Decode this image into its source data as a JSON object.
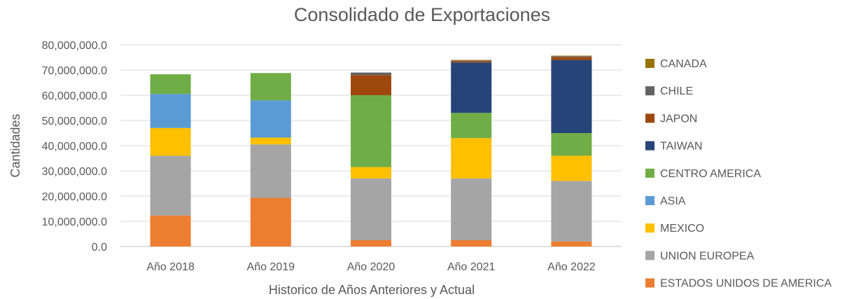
{
  "chart_data": {
    "type": "bar",
    "stacked": true,
    "title": "Consolidado de Exportaciones",
    "xlabel": "Historico de Años Anteriores y Actual",
    "ylabel": "Cantidades",
    "ylim": [
      0,
      80000000
    ],
    "yticks": [
      0,
      10000000,
      20000000,
      30000000,
      40000000,
      50000000,
      60000000,
      70000000,
      80000000
    ],
    "ytick_labels": [
      "0.0",
      "10,000,000.0",
      "20,000,000.0",
      "30,000,000.0",
      "40,000,000.0",
      "50,000,000.0",
      "60,000,000.0",
      "70,000,000.0",
      "80,000,000.0"
    ],
    "grid": true,
    "legend_position": "right",
    "categories": [
      "Año 2018",
      "Año 2019",
      "Año 2020",
      "Año 2021",
      "Año 2022"
    ],
    "series": [
      {
        "name": "ESTADOS UNIDOS DE AMERICA",
        "color": "#ed7d31",
        "values": [
          12300000,
          19300000,
          2500000,
          2500000,
          2000000
        ]
      },
      {
        "name": "UNION EUROPEA",
        "color": "#a5a5a5",
        "values": [
          23700000,
          21200000,
          24500000,
          24500000,
          24000000
        ]
      },
      {
        "name": "MEXICO",
        "color": "#ffc000",
        "values": [
          11000000,
          2700000,
          4500000,
          16000000,
          10000000
        ]
      },
      {
        "name": "ASIA",
        "color": "#5b9bd5",
        "values": [
          13500000,
          14800000,
          0,
          0,
          0
        ]
      },
      {
        "name": "CENTRO AMERICA",
        "color": "#70ad47",
        "values": [
          7800000,
          10800000,
          28500000,
          10000000,
          9000000
        ]
      },
      {
        "name": "TAIWAN",
        "color": "#264478",
        "values": [
          0,
          0,
          0,
          20000000,
          29000000
        ]
      },
      {
        "name": "JAPON",
        "color": "#9e480e",
        "values": [
          0,
          0,
          8000000,
          500000,
          1200000
        ]
      },
      {
        "name": "CHILE",
        "color": "#636363",
        "values": [
          0,
          0,
          1000000,
          300000,
          300000
        ]
      },
      {
        "name": "CANADA",
        "color": "#997300",
        "values": [
          0,
          0,
          0,
          200000,
          200000
        ]
      }
    ]
  }
}
